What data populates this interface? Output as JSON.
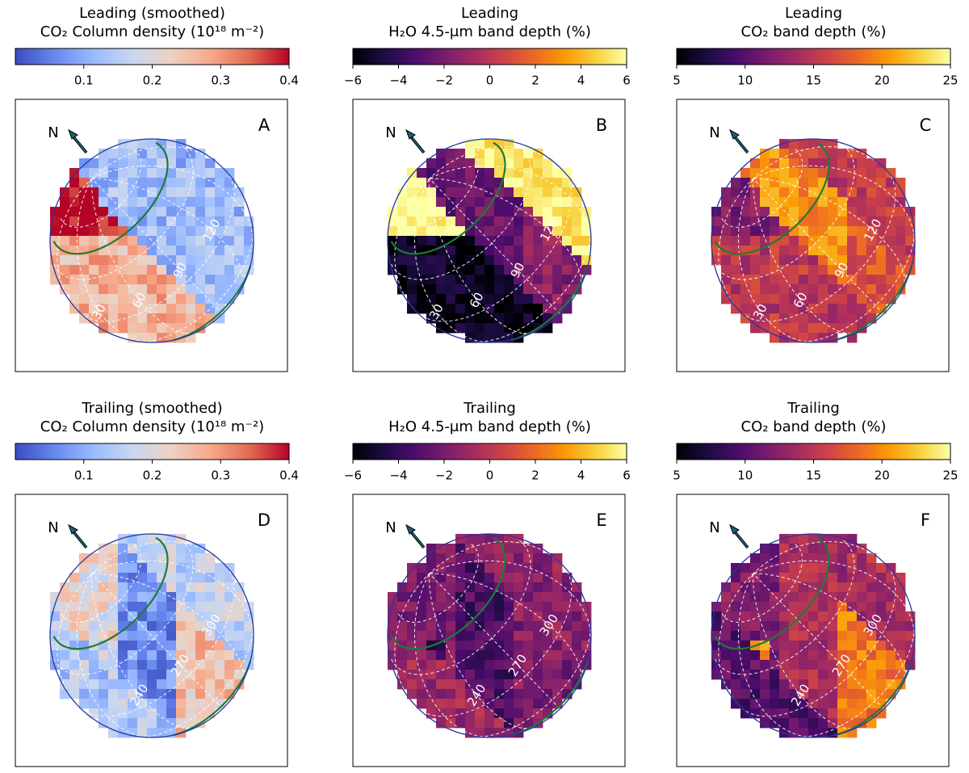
{
  "colormaps": {
    "coolwarm": [
      "#3b4cc0",
      "#6788ee",
      "#9abbff",
      "#c9d7f0",
      "#edd1c2",
      "#f7a889",
      "#e26952",
      "#b40426"
    ],
    "inferno": [
      "#000004",
      "#1b0c41",
      "#4a0c6b",
      "#781c6d",
      "#a52c60",
      "#cf4446",
      "#ed6925",
      "#fb9b06",
      "#f7d13d",
      "#fcffa4"
    ]
  },
  "chart_data": [
    {
      "panel": "A",
      "type": "heatmap",
      "title_line1": "Leading (smoothed)",
      "title_line2": "CO₂ Column density (10¹⁸ m⁻²)",
      "colormap": "coolwarm",
      "clim": [
        0.0,
        0.4
      ],
      "ticks": [
        0.1,
        0.2,
        0.3,
        0.4
      ],
      "tick_labels": [
        "0.1",
        "0.2",
        "0.3",
        "0.4"
      ],
      "north_label": "N",
      "longitude_labels": [
        {
          "text": "30"
        },
        {
          "text": "60"
        },
        {
          "text": "90"
        },
        {
          "text": "120"
        }
      ],
      "region_values": {
        "hi": 0.4,
        "ul": 0.27,
        "ll": 0.13,
        "c": 0.12,
        "r": 0.13,
        "lr": 0.12
      }
    },
    {
      "panel": "B",
      "type": "heatmap",
      "title_line1": "Leading",
      "title_line2": "H₂O 4.5-μm band depth (%)",
      "colormap": "inferno",
      "clim": [
        -6,
        6
      ],
      "ticks": [
        -6,
        -4,
        -2,
        0,
        2,
        4,
        6
      ],
      "tick_labels": [
        "−6",
        "−4",
        "−2",
        "0",
        "2",
        "4",
        "6"
      ],
      "north_label": "N",
      "longitude_labels": [
        {
          "text": "30"
        },
        {
          "text": "60"
        },
        {
          "text": "90"
        },
        {
          "text": "120"
        }
      ],
      "region_values": {
        "hi": 6.0,
        "ul": -5.4,
        "ll": -3.5,
        "c": -2.5,
        "r": -1.5,
        "lr": 5.5
      }
    },
    {
      "panel": "C",
      "type": "heatmap",
      "title_line1": "Leading",
      "title_line2": "CO₂ band depth (%)",
      "colormap": "inferno",
      "clim": [
        5,
        25
      ],
      "ticks": [
        5,
        10,
        15,
        20,
        25
      ],
      "tick_labels": [
        "5",
        "10",
        "15",
        "20",
        "25"
      ],
      "north_label": "N",
      "longitude_labels": [
        {
          "text": "30"
        },
        {
          "text": "60"
        },
        {
          "text": "90"
        },
        {
          "text": "120"
        }
      ],
      "region_values": {
        "hi": 12.0,
        "ul": 15.0,
        "ll": 19.0,
        "c": 20.0,
        "r": 17.0,
        "lr": 15.5
      }
    },
    {
      "panel": "D",
      "type": "heatmap",
      "title_line1": "Trailing (smoothed)",
      "title_line2": "CO₂ Column density (10¹⁸ m⁻²)",
      "colormap": "coolwarm",
      "clim": [
        0.0,
        0.4
      ],
      "ticks": [
        0.1,
        0.2,
        0.3,
        0.4
      ],
      "tick_labels": [
        "0.1",
        "0.2",
        "0.3",
        "0.4"
      ],
      "north_label": "N",
      "longitude_labels": [
        {
          "text": "240"
        },
        {
          "text": "270"
        },
        {
          "text": "300"
        }
      ],
      "region_values": {
        "hi": 0.14,
        "ul": 0.21,
        "ll": 0.17,
        "c": 0.07,
        "r": 0.25,
        "lr": 0.16
      }
    },
    {
      "panel": "E",
      "type": "heatmap",
      "title_line1": "Trailing",
      "title_line2": "H₂O 4.5-μm band depth (%)",
      "colormap": "inferno",
      "clim": [
        -6,
        6
      ],
      "ticks": [
        -6,
        -4,
        -2,
        0,
        2,
        4,
        6
      ],
      "tick_labels": [
        "−6",
        "−4",
        "−2",
        "0",
        "2",
        "4",
        "6"
      ],
      "north_label": "N",
      "longitude_labels": [
        {
          "text": "240"
        },
        {
          "text": "270"
        },
        {
          "text": "300"
        }
      ],
      "region_values": {
        "hi": -1.0,
        "ul": -2.0,
        "ll": -4.5,
        "c": -3.3,
        "r": -1.8,
        "lr": -1.5
      }
    },
    {
      "panel": "F",
      "type": "heatmap",
      "title_line1": "Trailing",
      "title_line2": "CO₂ band depth (%)",
      "colormap": "inferno",
      "clim": [
        5,
        25
      ],
      "ticks": [
        5,
        10,
        15,
        20,
        25
      ],
      "tick_labels": [
        "5",
        "10",
        "15",
        "20",
        "25"
      ],
      "north_label": "N",
      "longitude_labels": [
        {
          "text": "240"
        },
        {
          "text": "270"
        },
        {
          "text": "300"
        }
      ],
      "region_values": {
        "hi": 10.0,
        "ul": 12.0,
        "ll": 20.0,
        "c": 14.0,
        "r": 19.0,
        "lr": 14.0
      }
    }
  ]
}
